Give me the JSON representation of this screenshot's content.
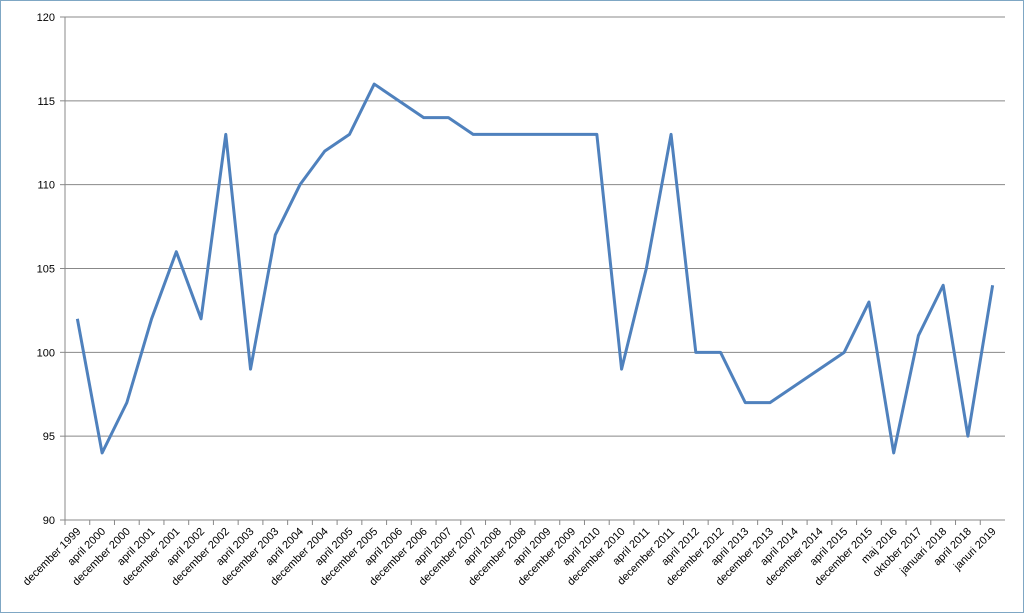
{
  "chart_data": {
    "type": "line",
    "categories": [
      "december 1999",
      "april 2000",
      "december 2000",
      "april 2001",
      "december 2001",
      "april 2002",
      "december 2002",
      "april 2003",
      "december 2003",
      "april 2004",
      "december 2004",
      "april 2005",
      "december 2005",
      "april 2006",
      "december 2006",
      "april 2007",
      "december 2007",
      "april 2008",
      "december 2008",
      "april 2009",
      "december 2009",
      "april 2010",
      "december 2010",
      "april 2011",
      "december 2011",
      "april 2012",
      "december 2012",
      "april 2013",
      "december 2013",
      "april 2014",
      "december 2014",
      "april 2015",
      "december 2015",
      "maj 2016",
      "oktober 2017",
      "januari 2018",
      "april 2018",
      "januri 2019"
    ],
    "series": [
      {
        "color": "#4f81bd",
        "values": [
          102,
          94,
          97,
          102,
          106,
          102,
          113,
          99,
          107,
          110,
          112,
          113,
          116,
          115,
          114,
          114,
          113,
          113,
          113,
          113,
          113,
          113,
          99,
          105,
          113,
          100,
          100,
          97,
          97,
          98,
          99,
          100,
          103,
          94,
          101,
          104,
          95,
          104
        ]
      }
    ],
    "ylim": [
      90,
      120
    ],
    "yticks": [
      90,
      95,
      100,
      105,
      110,
      115,
      120
    ],
    "grid": true
  }
}
